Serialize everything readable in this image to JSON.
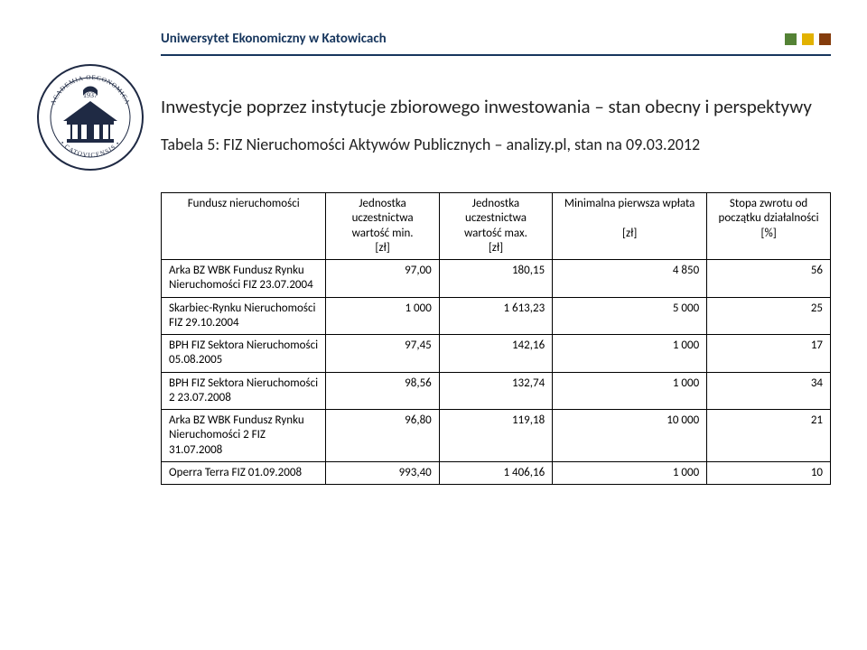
{
  "header": {
    "title": "Uniwersytet Ekonomiczny w Katowicach",
    "title_color": "#17365d",
    "title_fontsize": 15,
    "rule_color": "#17365d",
    "squares": [
      "#548235",
      "#e2b200",
      "#843c0c"
    ]
  },
  "logo": {
    "outer_color": "#1f2a44",
    "inner_color": "#ffffff"
  },
  "document": {
    "title": "Inwestycje poprzez instytucje zbiorowego inwestowania – stan obecny i perspektywy",
    "subtitle": "Tabela 5: FIZ Nieruchomości Aktywów Publicznych – analizy.pl, stan na 09.03.2012"
  },
  "table": {
    "columns": [
      "Fundusz nieruchomości",
      "Jednostka uczestnictwa wartość min.\n[zł]",
      "Jednostka uczestnictwa wartość max.\n[zł]",
      "Minimalna pierwsza wpłata\n\n[zł]",
      "Stopa zwrotu od początku działalności\n[%]"
    ],
    "rows": [
      {
        "name": "Arka BZ WBK Fundusz Rynku Nieruchomości FIZ 23.07.2004",
        "min": "97,00",
        "max": "180,15",
        "deposit": "4 850",
        "ret": "56"
      },
      {
        "name": "Skarbiec-Rynku Nieruchomości FIZ 29.10.2004",
        "min": "1 000",
        "max": "1 613,23",
        "deposit": "5 000",
        "ret": "25"
      },
      {
        "name": "BPH FIZ Sektora Nieruchomości 05.08.2005",
        "min": "97,45",
        "max": "142,16",
        "deposit": "1 000",
        "ret": "17"
      },
      {
        "name": "BPH FIZ Sektora Nieruchomości 2 23.07.2008",
        "min": "98,56",
        "max": "132,74",
        "deposit": "1 000",
        "ret": "34"
      },
      {
        "name": "Arka BZ WBK Fundusz Rynku Nieruchomości 2 FIZ 31.07.2008",
        "min": "96,80",
        "max": "119,18",
        "deposit": "10 000",
        "ret": "21"
      },
      {
        "name": "Operra Terra FIZ 01.09.2008",
        "min": "993,40",
        "max": "1 406,16",
        "deposit": "1 000",
        "ret": "10"
      }
    ],
    "border_color": "#000000",
    "font_size": 13
  }
}
